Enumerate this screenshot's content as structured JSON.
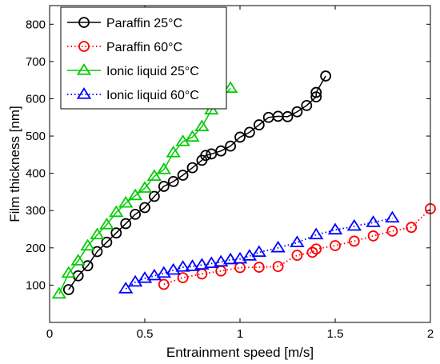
{
  "chart_data": {
    "type": "line",
    "xlabel": "Entrainment speed [m/s]",
    "ylabel": "Film thickness [nm]",
    "xlim": [
      0,
      2
    ],
    "ylim": [
      0,
      850
    ],
    "xticks": [
      0,
      0.5,
      1,
      1.5,
      2
    ],
    "xtick_labels": [
      "0",
      "0.5",
      "1",
      "1.5",
      "2"
    ],
    "yticks": [
      100,
      200,
      300,
      400,
      500,
      600,
      700,
      800
    ],
    "ytick_labels": [
      "100",
      "200",
      "300",
      "400",
      "500",
      "600",
      "700",
      "800"
    ],
    "grid": false,
    "legend_position": "top-left",
    "series": [
      {
        "name": "Paraffin 25°C",
        "color": "#000000",
        "line_style": "solid",
        "marker": "circle",
        "x": [
          0.1,
          0.15,
          0.2,
          0.25,
          0.3,
          0.35,
          0.4,
          0.45,
          0.5,
          0.55,
          0.6,
          0.65,
          0.7,
          0.75,
          0.8,
          0.82,
          0.85,
          0.9,
          0.95,
          1.0,
          1.05,
          1.1,
          1.15,
          1.2,
          1.25,
          1.3,
          1.35,
          1.4,
          1.4,
          1.45
        ],
        "y": [
          88,
          125,
          152,
          190,
          215,
          240,
          265,
          290,
          308,
          338,
          365,
          378,
          395,
          415,
          435,
          448,
          452,
          460,
          473,
          497,
          510,
          530,
          550,
          553,
          552,
          565,
          582,
          605,
          617,
          661
        ]
      },
      {
        "name": "Paraffin 60°C",
        "color": "#ff0000",
        "line_style": "dotted",
        "marker": "circle",
        "x": [
          0.6,
          0.7,
          0.8,
          0.9,
          1.0,
          1.1,
          1.2,
          1.3,
          1.38,
          1.4,
          1.5,
          1.6,
          1.7,
          1.8,
          1.9,
          2.0
        ],
        "y": [
          102,
          120,
          130,
          138,
          147,
          148,
          150,
          180,
          188,
          197,
          206,
          218,
          232,
          245,
          255,
          305
        ]
      },
      {
        "name": "Ionic liquid 25°C",
        "color": "#00cc00",
        "line_style": "solid",
        "marker": "triangle",
        "x": [
          0.05,
          0.1,
          0.15,
          0.2,
          0.25,
          0.3,
          0.35,
          0.4,
          0.45,
          0.5,
          0.55,
          0.6,
          0.65,
          0.7,
          0.75,
          0.8,
          0.85,
          0.95
        ],
        "y": [
          76,
          132,
          165,
          205,
          235,
          262,
          295,
          320,
          340,
          360,
          392,
          410,
          455,
          485,
          497,
          525,
          570,
          628
        ]
      },
      {
        "name": "Ionic liquid 60°C",
        "color": "#0000ff",
        "line_style": "dotted",
        "marker": "triangle",
        "x": [
          0.4,
          0.45,
          0.5,
          0.55,
          0.6,
          0.65,
          0.7,
          0.75,
          0.8,
          0.85,
          0.9,
          0.95,
          1.0,
          1.05,
          1.1,
          1.2,
          1.3,
          1.4,
          1.5,
          1.6,
          1.7,
          1.8
        ],
        "y": [
          90,
          108,
          118,
          125,
          132,
          140,
          148,
          150,
          154,
          158,
          162,
          168,
          170,
          178,
          188,
          200,
          214,
          235,
          248,
          258,
          268,
          280
        ]
      }
    ]
  }
}
